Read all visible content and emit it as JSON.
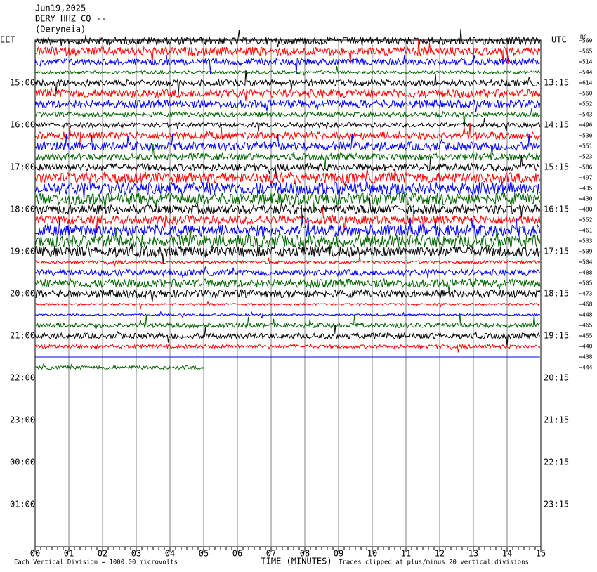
{
  "header": {
    "date": "Jun19,2025",
    "station": "DERY HHZ CQ --",
    "location": "(Deryneia)"
  },
  "left_axis": {
    "zone": "EET",
    "labels": [
      "15:00",
      "16:00",
      "17:00",
      "18:00",
      "19:00",
      "20:00",
      "21:00",
      "22:00",
      "23:00",
      "00:00",
      "01:00"
    ]
  },
  "right_axis": {
    "zone": "UTC",
    "labels": [
      "13:15",
      "14:15",
      "15:15",
      "16:15",
      "17:15",
      "18:15",
      "19:15",
      "20:15",
      "21:15",
      "22:15",
      "23:15"
    ]
  },
  "dc_offsets": {
    "header": "DC",
    "values": [
      560,
      565,
      514,
      544,
      614,
      560,
      552,
      543,
      496,
      530,
      551,
      523,
      586,
      497,
      435,
      430,
      480,
      552,
      461,
      533,
      509,
      504,
      488,
      505,
      473,
      468,
      448,
      465,
      455,
      440,
      438,
      444
    ]
  },
  "x_axis": {
    "title": "TIME (MINUTES)",
    "labels": [
      "00",
      "01",
      "02",
      "03",
      "04",
      "05",
      "06",
      "07",
      "08",
      "09",
      "10",
      "11",
      "12",
      "13",
      "14",
      "15"
    ]
  },
  "footer": {
    "scale": "Each Vertical Division = 1000.00 microvolts",
    "clip": "Traces clipped at plus/minus 20 vertical divisions"
  },
  "trace_colors": [
    "#000000",
    "#ff0000",
    "#0000ff",
    "#006400"
  ]
}
